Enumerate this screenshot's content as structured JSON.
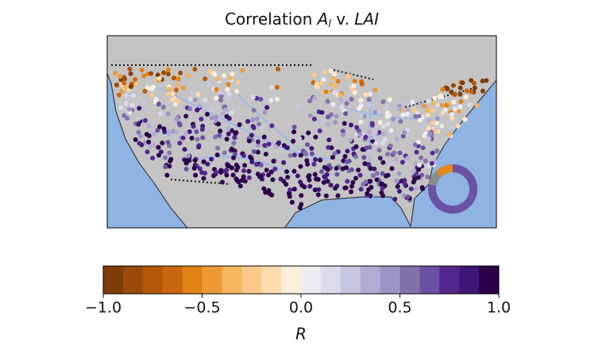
{
  "chart_data": {
    "type": "map",
    "title": {
      "prefix": "Correlation ",
      "var": "A",
      "sub": "l",
      "mid": " v. ",
      "suffix": "LAI"
    },
    "inset_donut": {
      "values": [
        12,
        10,
        78
      ],
      "colors": [
        "#e08a1e",
        "#8c8c8c",
        "#6a51a3"
      ]
    },
    "colorbar": {
      "label": "R",
      "lim": [
        -1,
        1
      ],
      "ticks": [
        {
          "value": -1,
          "label": "−1.0"
        },
        {
          "value": -0.5,
          "label": "−0.5"
        },
        {
          "value": 0,
          "label": "0.0"
        },
        {
          "value": 0.5,
          "label": "0.5"
        },
        {
          "value": 1,
          "label": "1.0"
        }
      ],
      "colors": [
        "#7f3b08",
        "#9a4a0a",
        "#b35806",
        "#c9670f",
        "#e08214",
        "#ec9a36",
        "#f5b45d",
        "#fdc98a",
        "#fddcb0",
        "#fdeedb",
        "#ecebf2",
        "#dcdaeb",
        "#c8c5e0",
        "#b2abd2",
        "#9d95c6",
        "#8073ac",
        "#6a51a3",
        "#54278f",
        "#3f1677",
        "#2d004b"
      ]
    }
  }
}
